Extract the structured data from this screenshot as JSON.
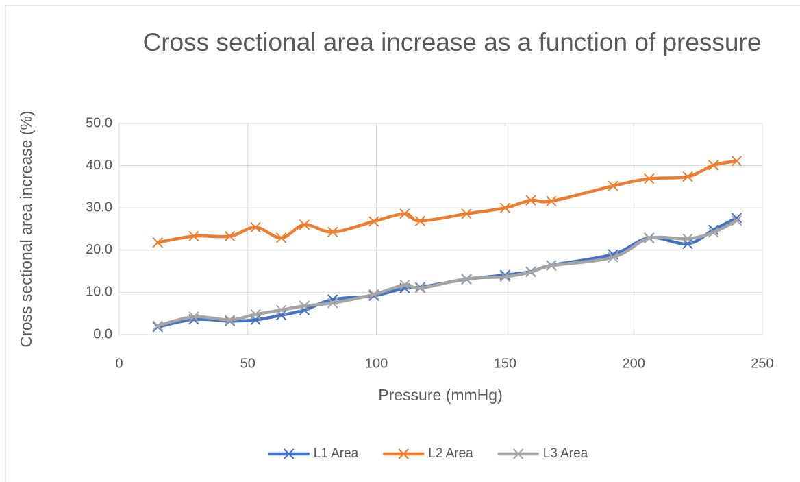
{
  "chart_data": {
    "type": "scatter",
    "title": "Cross sectional area increase as a function of pressure",
    "x_label": "Pressure (mmHg)",
    "y_label": "Cross sectional area increase (%)",
    "x": [
      15,
      29,
      43,
      53,
      63,
      72,
      83,
      99,
      111,
      117,
      135,
      150,
      160,
      168,
      192,
      206,
      221,
      231,
      240
    ],
    "series": [
      {
        "name": "L1 Area",
        "color": "#4472c4",
        "values": [
          1.8,
          3.6,
          3.2,
          3.5,
          4.6,
          5.8,
          8.3,
          9.2,
          11.0,
          11.2,
          13.1,
          14.1,
          14.9,
          16.4,
          19.0,
          22.9,
          21.5,
          24.8,
          27.6
        ]
      },
      {
        "name": "L2 Area",
        "color": "#ed7d31",
        "values": [
          21.8,
          23.3,
          23.3,
          25.4,
          22.9,
          26.0,
          24.3,
          26.8,
          28.6,
          26.9,
          28.6,
          30.0,
          31.8,
          31.6,
          35.2,
          36.9,
          37.4,
          40.1,
          41.1
        ]
      },
      {
        "name": "L3 Area",
        "color": "#a5a5a5",
        "values": [
          2.1,
          4.2,
          3.5,
          4.8,
          5.8,
          6.8,
          7.5,
          9.5,
          11.8,
          11.0,
          13.2,
          13.7,
          14.8,
          16.3,
          18.3,
          22.8,
          22.7,
          24.2,
          27.0
        ]
      }
    ],
    "xlim": [
      0,
      250
    ],
    "xticks": [
      0,
      50,
      100,
      150,
      200,
      250
    ],
    "ylim": [
      0,
      50
    ],
    "yticks": [
      {
        "value": 0,
        "label": "0.0"
      },
      {
        "value": 10,
        "label": "10.0"
      },
      {
        "value": 20,
        "label": "20.0"
      },
      {
        "value": 30,
        "label": "30.0"
      },
      {
        "value": 40,
        "label": "40.0"
      },
      {
        "value": 50,
        "label": "50.0"
      }
    ],
    "grid": true,
    "smooth": true,
    "legend": "bottom"
  }
}
